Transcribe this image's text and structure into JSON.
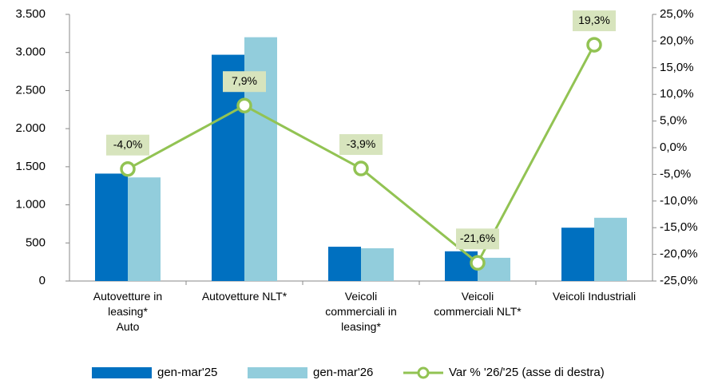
{
  "chart_data": {
    "type": "bar_line",
    "categories": [
      "Autovetture in\nleasing*\nAuto",
      "Autovetture NLT*",
      "Veicoli\ncommerciali in\nleasing*",
      "Veicoli\ncommerciali NLT*",
      "Veicoli Industriali"
    ],
    "series": [
      {
        "name": "gen-mar'25",
        "type": "bar",
        "color": "#0070c0",
        "values": [
          1410,
          2970,
          450,
          390,
          700
        ]
      },
      {
        "name": "gen-mar'26",
        "type": "bar",
        "color": "#92cddc",
        "values": [
          1360,
          3200,
          430,
          305,
          830
        ]
      },
      {
        "name": "Var % '26/'25 (asse di destra)",
        "type": "line",
        "axis": "y2",
        "color": "#92c353",
        "values": [
          -4.0,
          7.9,
          -3.9,
          -21.6,
          19.3
        ],
        "value_labels": [
          "-4,0%",
          "7,9%",
          "-3,9%",
          "-21,6%",
          "19,3%"
        ]
      }
    ],
    "ylim": [
      0,
      3500
    ],
    "yticks": [
      0,
      500,
      {
        "value": 1000,
        "label": "1.000"
      },
      {
        "value": 1500,
        "label": "1.500"
      },
      {
        "value": 2000,
        "label": "2.000"
      },
      {
        "value": 2500,
        "label": "2.500"
      },
      {
        "value": 3000,
        "label": "3.000"
      },
      {
        "value": 3500,
        "label": "3.500"
      }
    ],
    "y2lim": [
      -25,
      25
    ],
    "y2ticks": [
      {
        "value": -25,
        "label": "-25,0%"
      },
      {
        "value": -20,
        "label": "-20,0%"
      },
      {
        "value": -15,
        "label": "-15,0%"
      },
      {
        "value": -10,
        "label": "-10,0%"
      },
      {
        "value": -5,
        "label": "-5,0%"
      },
      {
        "value": 0,
        "label": "0,0%"
      },
      {
        "value": 5,
        "label": "5,0%"
      },
      {
        "value": 10,
        "label": "10,0%"
      },
      {
        "value": 15,
        "label": "15,0%"
      },
      {
        "value": 20,
        "label": "20,0%"
      },
      {
        "value": 25,
        "label": "25,0%"
      }
    ],
    "grid": false,
    "legend": "bottom"
  }
}
